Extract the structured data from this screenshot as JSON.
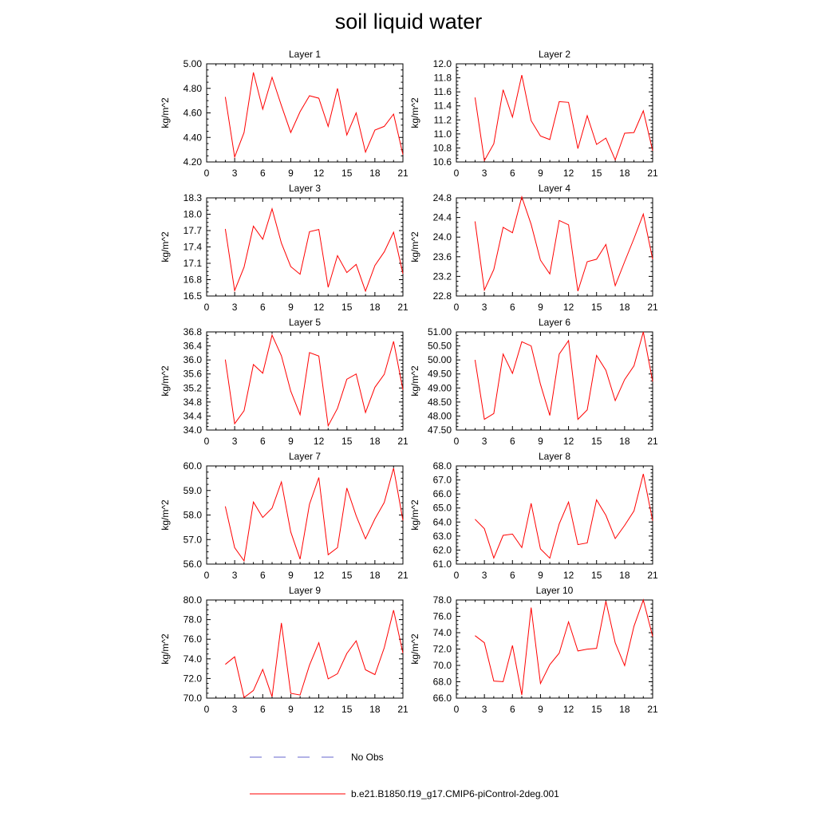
{
  "title": "soil liquid water",
  "legend": [
    {
      "label": "No Obs",
      "color": "#6666cc",
      "dash": true
    },
    {
      "label": "b.e21.B1850.f19_g17.CMIP6-piControl-2deg.001",
      "color": "#ff0000",
      "dash": false
    }
  ],
  "line_color": "#ff0000",
  "chart_data": [
    {
      "type": "line",
      "title": "Layer 1",
      "ylabel": "kg/m^2",
      "xlim": [
        0,
        21
      ],
      "ylim": [
        4.2,
        5.0
      ],
      "xticks": [
        0,
        3,
        6,
        9,
        12,
        15,
        18,
        21
      ],
      "yticks": [
        "4.20",
        "4.40",
        "4.60",
        "4.80",
        "5.00"
      ],
      "x": [
        2,
        3,
        4,
        5,
        6,
        7,
        8,
        9,
        10,
        11,
        12,
        13,
        14,
        15,
        16,
        17,
        18,
        19,
        20,
        21
      ],
      "series": [
        {
          "name": "b.e21.B1850.f19_g17.CMIP6-piControl-2deg.001",
          "values": [
            4.73,
            4.24,
            4.44,
            4.93,
            4.63,
            4.89,
            4.66,
            4.44,
            4.61,
            4.74,
            4.72,
            4.49,
            4.8,
            4.42,
            4.6,
            4.28,
            4.46,
            4.49,
            4.59,
            4.26
          ]
        }
      ]
    },
    {
      "type": "line",
      "title": "Layer 2",
      "ylabel": "kg/m^2",
      "xlim": [
        0,
        21
      ],
      "ylim": [
        10.6,
        12.0
      ],
      "xticks": [
        0,
        3,
        6,
        9,
        12,
        15,
        18,
        21
      ],
      "yticks": [
        "10.6",
        "10.8",
        "11.0",
        "11.2",
        "11.4",
        "11.6",
        "11.8",
        "12.0"
      ],
      "x": [
        2,
        3,
        4,
        5,
        6,
        7,
        8,
        9,
        10,
        11,
        12,
        13,
        14,
        15,
        16,
        17,
        18,
        19,
        20,
        21
      ],
      "series": [
        {
          "name": "b.e21.B1850.f19_g17.CMIP6-piControl-2deg.001",
          "values": [
            11.52,
            10.62,
            10.86,
            11.63,
            11.24,
            11.84,
            11.19,
            10.97,
            10.92,
            11.46,
            11.45,
            10.79,
            11.26,
            10.85,
            10.94,
            10.63,
            11.01,
            11.02,
            11.33,
            10.76
          ]
        }
      ]
    },
    {
      "type": "line",
      "title": "Layer 3",
      "ylabel": "kg/m^2",
      "xlim": [
        0,
        21
      ],
      "ylim": [
        16.5,
        18.3
      ],
      "xticks": [
        0,
        3,
        6,
        9,
        12,
        15,
        18,
        21
      ],
      "yticks": [
        "16.5",
        "16.8",
        "17.1",
        "17.4",
        "17.7",
        "18.0",
        "18.3"
      ],
      "x": [
        2,
        3,
        4,
        5,
        6,
        7,
        8,
        9,
        10,
        11,
        12,
        13,
        14,
        15,
        16,
        17,
        18,
        19,
        20,
        21
      ],
      "series": [
        {
          "name": "b.e21.B1850.f19_g17.CMIP6-piControl-2deg.001",
          "values": [
            17.73,
            16.6,
            17.03,
            17.78,
            17.54,
            18.1,
            17.47,
            17.04,
            16.9,
            17.68,
            17.72,
            16.66,
            17.24,
            16.93,
            17.08,
            16.59,
            17.06,
            17.31,
            17.67,
            16.91
          ]
        }
      ]
    },
    {
      "type": "line",
      "title": "Layer 4",
      "ylabel": "kg/m^2",
      "xlim": [
        0,
        21
      ],
      "ylim": [
        22.8,
        24.8
      ],
      "xticks": [
        0,
        3,
        6,
        9,
        12,
        15,
        18,
        21
      ],
      "yticks": [
        "22.8",
        "23.2",
        "23.6",
        "24.0",
        "24.4",
        "24.8"
      ],
      "x": [
        2,
        3,
        4,
        5,
        6,
        7,
        8,
        9,
        10,
        11,
        12,
        13,
        14,
        15,
        16,
        17,
        18,
        19,
        20,
        21
      ],
      "series": [
        {
          "name": "b.e21.B1850.f19_g17.CMIP6-piControl-2deg.001",
          "values": [
            24.32,
            22.92,
            23.34,
            24.2,
            24.09,
            24.82,
            24.26,
            23.53,
            23.25,
            24.34,
            24.25,
            22.9,
            23.5,
            23.55,
            23.85,
            23.01,
            23.5,
            23.97,
            24.47,
            23.55
          ]
        }
      ]
    },
    {
      "type": "line",
      "title": "Layer 5",
      "ylabel": "kg/m^2",
      "xlim": [
        0,
        21
      ],
      "ylim": [
        34.0,
        36.8
      ],
      "xticks": [
        0,
        3,
        6,
        9,
        12,
        15,
        18,
        21
      ],
      "yticks": [
        "34.0",
        "34.4",
        "34.8",
        "35.2",
        "35.6",
        "36.0",
        "36.4",
        "36.8"
      ],
      "x": [
        2,
        3,
        4,
        5,
        6,
        7,
        8,
        9,
        10,
        11,
        12,
        13,
        14,
        15,
        16,
        17,
        18,
        19,
        20,
        21
      ],
      "series": [
        {
          "name": "b.e21.B1850.f19_g17.CMIP6-piControl-2deg.001",
          "values": [
            36.01,
            34.18,
            34.55,
            35.87,
            35.62,
            36.71,
            36.12,
            35.11,
            34.44,
            36.21,
            36.11,
            34.12,
            34.62,
            35.45,
            35.6,
            34.5,
            35.22,
            35.59,
            36.53,
            35.15
          ]
        }
      ]
    },
    {
      "type": "line",
      "title": "Layer 6",
      "ylabel": "kg/m^2",
      "xlim": [
        0,
        21
      ],
      "ylim": [
        47.5,
        51.0
      ],
      "xticks": [
        0,
        3,
        6,
        9,
        12,
        15,
        18,
        21
      ],
      "yticks": [
        "47.50",
        "48.00",
        "48.50",
        "49.00",
        "49.50",
        "50.00",
        "50.50",
        "51.00"
      ],
      "x": [
        2,
        3,
        4,
        5,
        6,
        7,
        8,
        9,
        10,
        11,
        12,
        13,
        14,
        15,
        16,
        17,
        18,
        19,
        20,
        21
      ],
      "series": [
        {
          "name": "b.e21.B1850.f19_g17.CMIP6-piControl-2deg.001",
          "values": [
            50.0,
            47.88,
            48.09,
            50.21,
            49.52,
            50.65,
            50.5,
            49.13,
            48.02,
            50.21,
            50.69,
            47.88,
            48.22,
            50.16,
            49.63,
            48.55,
            49.3,
            49.79,
            51.0,
            49.23
          ]
        }
      ]
    },
    {
      "type": "line",
      "title": "Layer 7",
      "ylabel": "kg/m^2",
      "xlim": [
        0,
        21
      ],
      "ylim": [
        56.0,
        60.0
      ],
      "xticks": [
        0,
        3,
        6,
        9,
        12,
        15,
        18,
        21
      ],
      "yticks": [
        "56.0",
        "57.0",
        "58.0",
        "59.0",
        "60.0"
      ],
      "x": [
        2,
        3,
        4,
        5,
        6,
        7,
        8,
        9,
        10,
        11,
        12,
        13,
        14,
        15,
        16,
        17,
        18,
        19,
        20,
        21
      ],
      "series": [
        {
          "name": "b.e21.B1850.f19_g17.CMIP6-piControl-2deg.001",
          "values": [
            58.35,
            56.67,
            56.13,
            58.53,
            57.9,
            58.28,
            59.35,
            57.31,
            56.2,
            58.44,
            59.53,
            56.38,
            56.67,
            59.1,
            57.97,
            57.03,
            57.84,
            58.51,
            59.91,
            57.78
          ]
        }
      ]
    },
    {
      "type": "line",
      "title": "Layer 8",
      "ylabel": "kg/m^2",
      "xlim": [
        0,
        21
      ],
      "ylim": [
        61.0,
        68.0
      ],
      "xticks": [
        0,
        3,
        6,
        9,
        12,
        15,
        18,
        21
      ],
      "yticks": [
        "61.0",
        "62.0",
        "63.0",
        "64.0",
        "65.0",
        "66.0",
        "67.0",
        "68.0"
      ],
      "x": [
        2,
        3,
        4,
        5,
        6,
        7,
        8,
        9,
        10,
        11,
        12,
        13,
        14,
        15,
        16,
        17,
        18,
        19,
        20,
        21
      ],
      "series": [
        {
          "name": "b.e21.B1850.f19_g17.CMIP6-piControl-2deg.001",
          "values": [
            64.2,
            63.52,
            61.43,
            63.05,
            63.14,
            62.18,
            65.33,
            62.08,
            61.42,
            63.87,
            65.43,
            62.39,
            62.51,
            65.58,
            64.48,
            62.82,
            63.76,
            64.79,
            67.43,
            64.09
          ]
        }
      ]
    },
    {
      "type": "line",
      "title": "Layer 9",
      "ylabel": "kg/m^2",
      "xlim": [
        0,
        21
      ],
      "ylim": [
        70.0,
        80.0
      ],
      "xticks": [
        0,
        3,
        6,
        9,
        12,
        15,
        18,
        21
      ],
      "yticks": [
        "70.0",
        "72.0",
        "74.0",
        "76.0",
        "78.0",
        "80.0"
      ],
      "x": [
        2,
        3,
        4,
        5,
        6,
        7,
        8,
        9,
        10,
        11,
        12,
        13,
        14,
        15,
        16,
        17,
        18,
        19,
        20,
        21
      ],
      "series": [
        {
          "name": "b.e21.B1850.f19_g17.CMIP6-piControl-2deg.001",
          "values": [
            73.44,
            74.21,
            70.06,
            70.78,
            72.93,
            70.14,
            77.66,
            70.49,
            70.32,
            73.36,
            75.64,
            71.96,
            72.49,
            74.55,
            75.84,
            72.89,
            72.4,
            75.13,
            78.96,
            74.59
          ]
        }
      ]
    },
    {
      "type": "line",
      "title": "Layer 10",
      "ylabel": "kg/m^2",
      "xlim": [
        0,
        21
      ],
      "ylim": [
        66.0,
        78.0
      ],
      "xticks": [
        0,
        3,
        6,
        9,
        12,
        15,
        18,
        21
      ],
      "yticks": [
        "66.0",
        "68.0",
        "70.0",
        "72.0",
        "74.0",
        "76.0",
        "78.0"
      ],
      "x": [
        2,
        3,
        4,
        5,
        6,
        7,
        8,
        9,
        10,
        11,
        12,
        13,
        14,
        15,
        16,
        17,
        18,
        19,
        20,
        21
      ],
      "series": [
        {
          "name": "b.e21.B1850.f19_g17.CMIP6-piControl-2deg.001",
          "values": [
            73.64,
            72.77,
            68.09,
            68.01,
            72.44,
            66.39,
            77.06,
            67.79,
            70.1,
            71.5,
            75.33,
            71.77,
            71.99,
            72.09,
            77.85,
            72.76,
            69.97,
            74.79,
            78.0,
            73.54
          ]
        }
      ]
    }
  ]
}
